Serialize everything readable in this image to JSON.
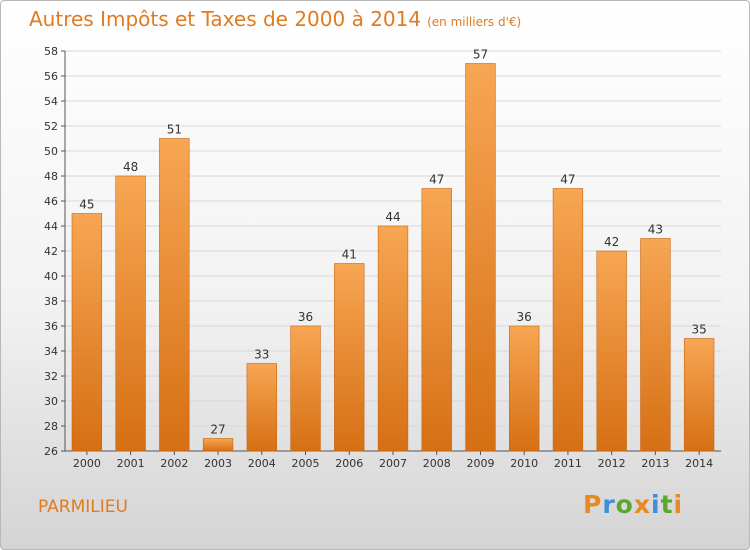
{
  "header": {
    "title": "Autres Impôts et Taxes de 2000 à 2014",
    "unit": "(en milliers d'€)"
  },
  "commune": "PARMILIEU",
  "logo": {
    "text": "Proxiti",
    "colors": [
      "#e88a1f",
      "#3f8fd6",
      "#5aa82e",
      "#e88a1f",
      "#3f8fd6",
      "#5aa82e",
      "#e88a1f"
    ]
  },
  "colors": {
    "accent": "#e07b21",
    "bar_top": "#f7a653",
    "bar_bottom": "#d66f14",
    "grid": "#d8d8d8"
  },
  "chart_data": {
    "type": "bar",
    "title": "Autres Impôts et Taxes de 2000 à 2014",
    "subtitle": "(en milliers d'€)",
    "categories": [
      "2000",
      "2001",
      "2002",
      "2003",
      "2004",
      "2005",
      "2006",
      "2007",
      "2008",
      "2009",
      "2010",
      "2011",
      "2012",
      "2013",
      "2014"
    ],
    "values": [
      45,
      48,
      51,
      27,
      33,
      36,
      41,
      44,
      47,
      57,
      36,
      47,
      42,
      43,
      35
    ],
    "ylim": [
      26,
      58
    ],
    "yticks": [
      26,
      28,
      30,
      32,
      34,
      36,
      38,
      40,
      42,
      44,
      46,
      48,
      50,
      52,
      54,
      56,
      58
    ],
    "grid": true,
    "legend": "none"
  }
}
